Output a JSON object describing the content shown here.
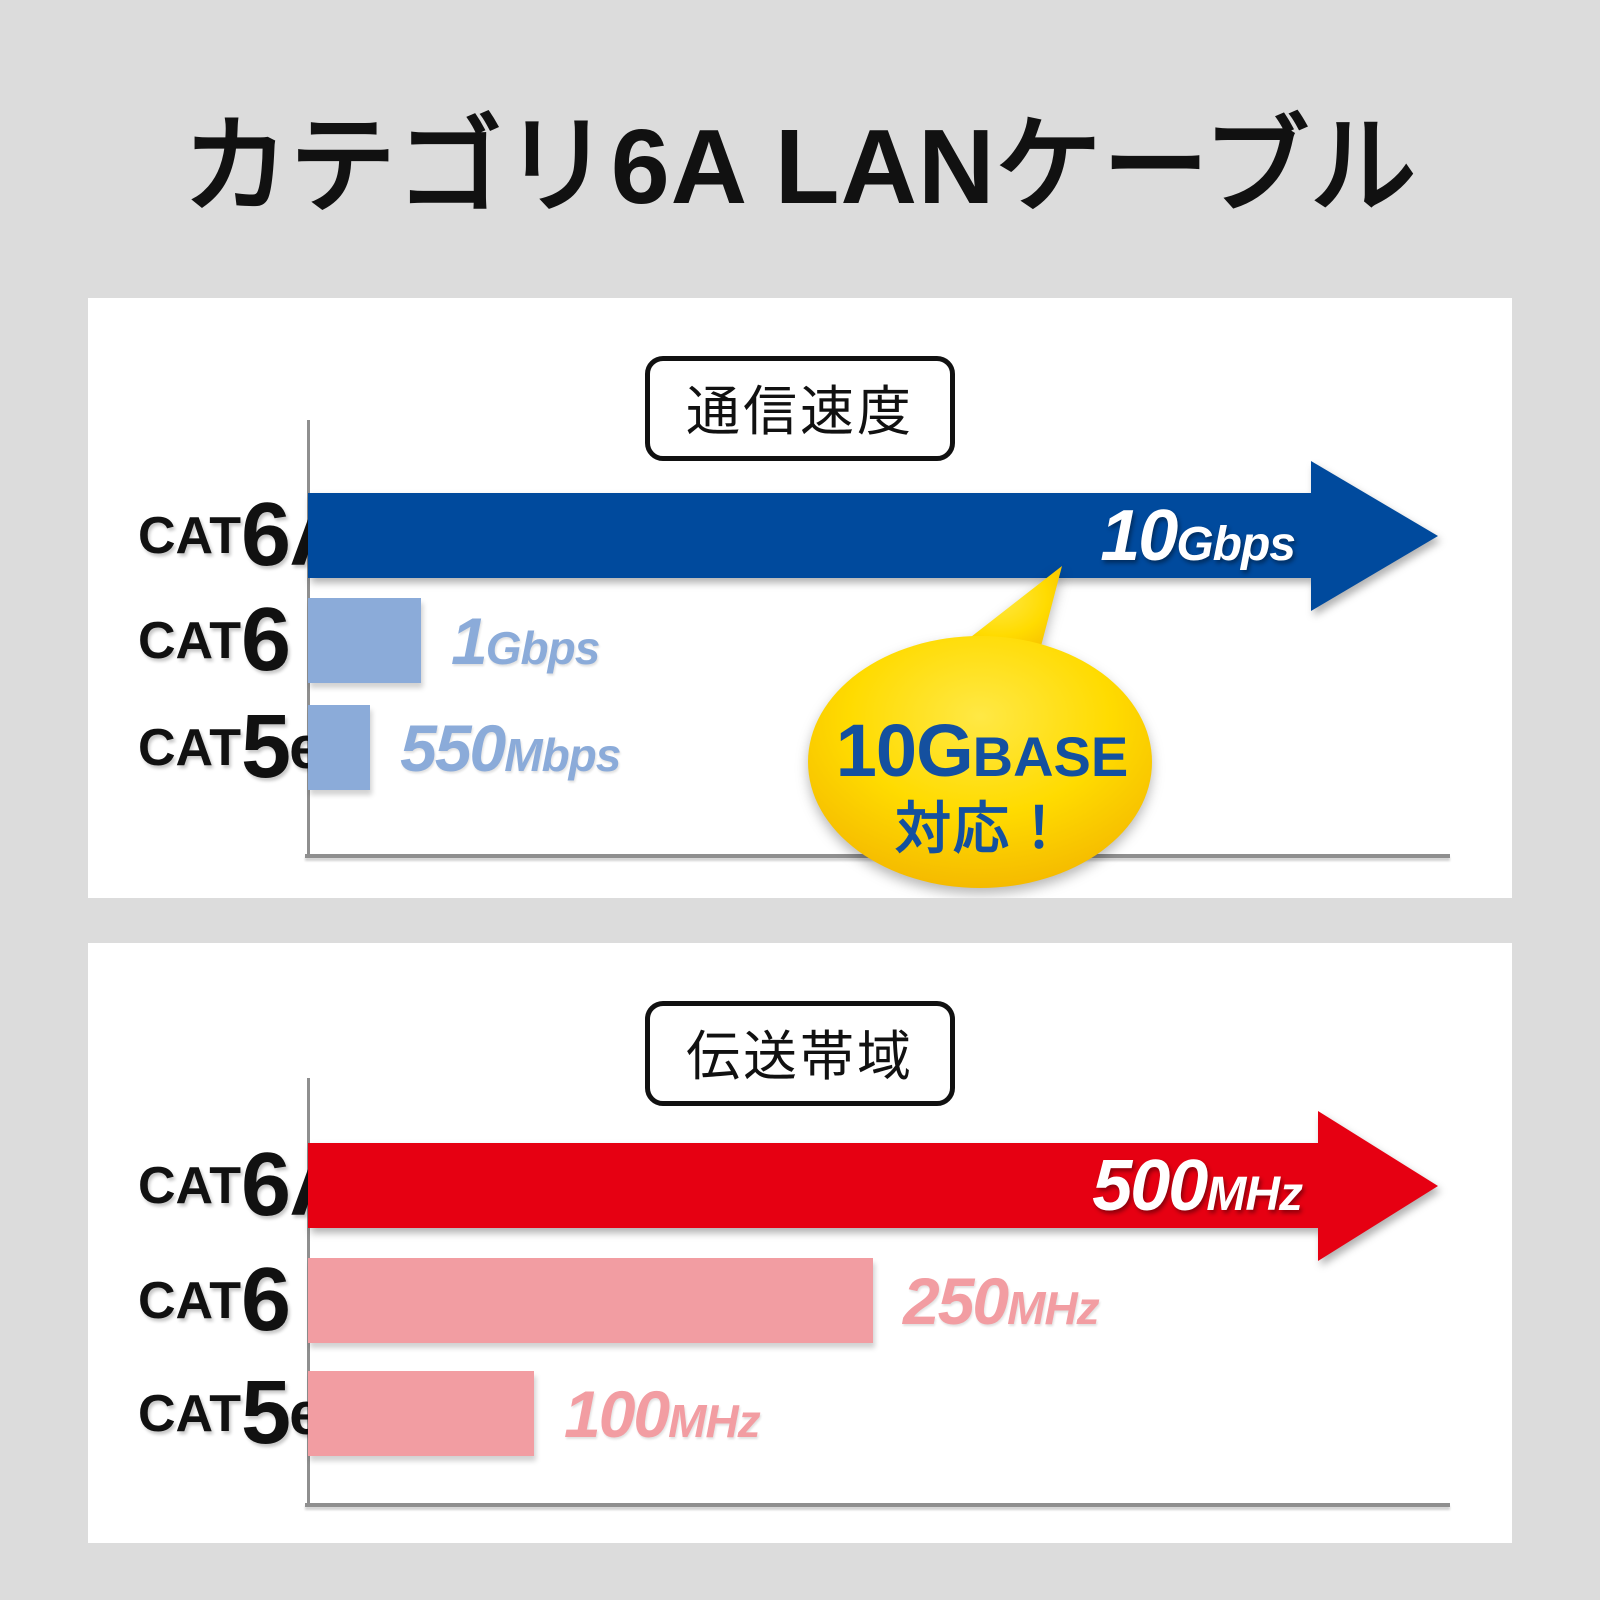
{
  "page_title": "カテゴリ6A LANケーブル",
  "colors": {
    "background": "#dcdcdc",
    "panel": "#ffffff",
    "ink": "#111111",
    "axis_gray": "#8f8f8f",
    "primary_blue": "#004a9d",
    "light_blue": "#8babd9",
    "primary_red": "#e60012",
    "light_pink": "#f29da2",
    "bubble_yellow_light": "#ffe845",
    "bubble_yellow": "#ffdb00",
    "bubble_gold": "#efa800",
    "bubble_text_blue": "#14509f"
  },
  "chart_data": [
    {
      "type": "bar",
      "title": "通信速度",
      "orientation": "horizontal",
      "unit": "Mbps",
      "xlim": [
        0,
        10000
      ],
      "grid": false,
      "legend": "none",
      "categories": [
        "CAT6A",
        "CAT6",
        "CAT5e"
      ],
      "values": [
        10000,
        1000,
        550
      ],
      "rows": [
        {
          "cat": "CAT",
          "num": "6A",
          "sub": "",
          "value_num": "10",
          "value_unit": "Gbps",
          "style": "arrow",
          "color": "blue",
          "label_position": "inside"
        },
        {
          "cat": "CAT",
          "num": "6",
          "sub": "",
          "value_num": "1",
          "value_unit": "Gbps",
          "style": "bar",
          "color": "lightblue",
          "label_position": "outside"
        },
        {
          "cat": "CAT",
          "num": "5",
          "sub": "e",
          "value_num": "550",
          "value_unit": "Mbps",
          "style": "bar",
          "color": "lightblue",
          "label_position": "outside"
        }
      ],
      "annotation": {
        "line1_strong": "10G",
        "line1_rest": "BASE",
        "line2": "対応！",
        "shape": "speech-bubble",
        "points_to": "CAT6A arrow"
      }
    },
    {
      "type": "bar",
      "title": "伝送帯域",
      "orientation": "horizontal",
      "unit": "MHz",
      "xlim": [
        0,
        500
      ],
      "grid": false,
      "legend": "none",
      "categories": [
        "CAT6A",
        "CAT6",
        "CAT5e"
      ],
      "values": [
        500,
        250,
        100
      ],
      "rows": [
        {
          "cat": "CAT",
          "num": "6A",
          "sub": "",
          "value_num": "500",
          "value_unit": "MHz",
          "style": "arrow",
          "color": "red",
          "label_position": "inside"
        },
        {
          "cat": "CAT",
          "num": "6",
          "sub": "",
          "value_num": "250",
          "value_unit": "MHz",
          "style": "bar",
          "color": "pink",
          "label_position": "outside"
        },
        {
          "cat": "CAT",
          "num": "5",
          "sub": "e",
          "value_num": "100",
          "value_unit": "MHz",
          "style": "bar",
          "color": "pink",
          "label_position": "outside"
        }
      ]
    }
  ]
}
